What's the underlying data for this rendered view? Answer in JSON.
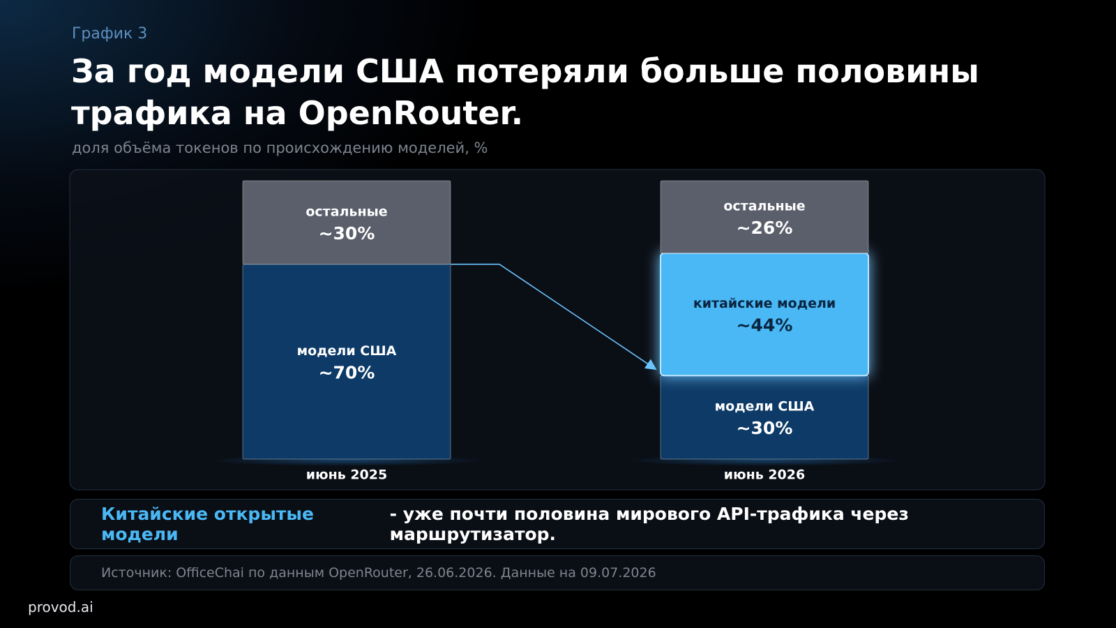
{
  "kicker": "График 3",
  "chart_data": {
    "type": "stacked_bar",
    "title": "За год модели США потеряли больше половины трафика на OpenRouter.",
    "subtitle": "доля объёма токенов по происхождению моделей, %",
    "categories": [
      "июнь 2025",
      "июнь 2026"
    ],
    "ylim": [
      0,
      100
    ],
    "series": [
      {
        "name": "модели США",
        "color": "#0d3a66",
        "values": [
          70,
          30
        ],
        "value_labels": [
          "~70%",
          "~30%"
        ]
      },
      {
        "name": "китайские модели",
        "color": "#4ab8f5",
        "values": [
          null,
          44
        ],
        "value_labels": [
          null,
          "~44%"
        ]
      },
      {
        "name": "остальные",
        "color": "#5a5f6b",
        "values": [
          30,
          26
        ],
        "value_labels": [
          "~30%",
          "~26%"
        ]
      }
    ]
  },
  "callout": {
    "highlight": "Китайские открытые модели",
    "text": "- уже почти половина мирового API-трафика через маршрутизатор."
  },
  "source": "Источник: OfficeChai по данным OpenRouter, 26.06.2026. Данные на 09.07.2026",
  "brand": "provod.ai"
}
